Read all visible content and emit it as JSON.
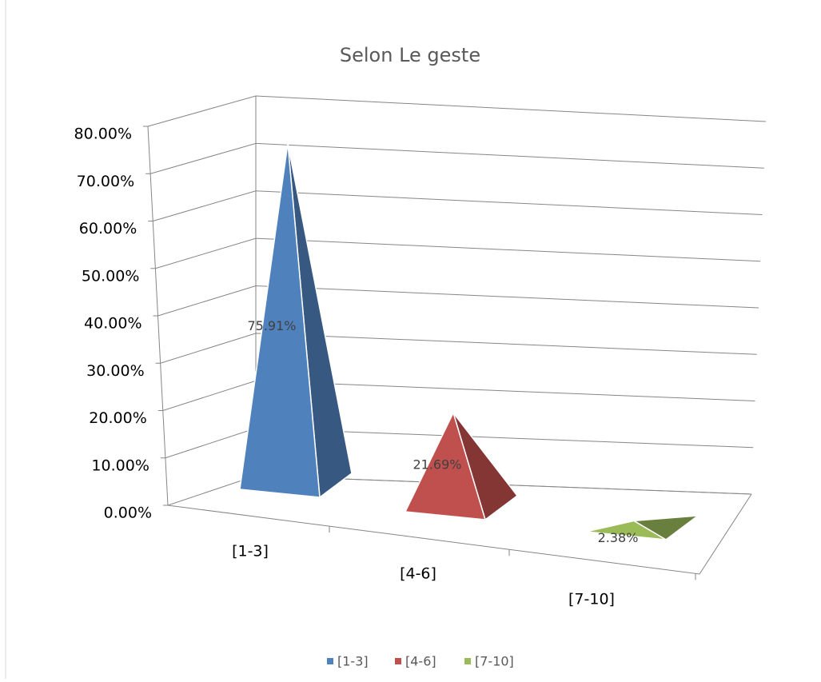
{
  "chart_data": {
    "type": "pyramid",
    "title": "Selon Le geste",
    "categories": [
      "[1-3]",
      "[4-6]",
      "[7-10]"
    ],
    "values": [
      75.91,
      21.69,
      2.38
    ],
    "value_labels": [
      "75.91%",
      "21.69%",
      "2.38%"
    ],
    "colors": [
      "#4f81bd",
      "#c0504d",
      "#9bbb59"
    ],
    "ylim": [
      0,
      80
    ],
    "yticks": [
      {
        "value": 0,
        "label": "0.00%"
      },
      {
        "value": 10,
        "label": "10.00%"
      },
      {
        "value": 20,
        "label": "20.00%"
      },
      {
        "value": 30,
        "label": "30.00%"
      },
      {
        "value": 40,
        "label": "40.00%"
      },
      {
        "value": 50,
        "label": "50.00%"
      },
      {
        "value": 60,
        "label": "60.00%"
      },
      {
        "value": 70,
        "label": "70.00%"
      },
      {
        "value": 80,
        "label": "80.00%"
      }
    ],
    "grid": true,
    "legend": "bottom"
  }
}
